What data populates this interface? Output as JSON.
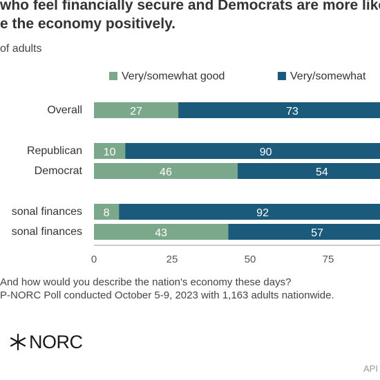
{
  "title": {
    "line1": "who feel financially secure and Democrats are more likely",
    "line2": "e the economy positively."
  },
  "subtitle": "of adults",
  "footnote": {
    "line1": "And how would you describe the nation's economy these days?",
    "line2": "P-NORC Poll conducted October 5-9, 2023 with 1,163 adults nationwide."
  },
  "logo": {
    "text": "NORC",
    "icon": "norc-star-icon"
  },
  "source_tag": "API",
  "colors": {
    "good": "#7ba88a",
    "poor": "#1b5a7a",
    "text": "#333333",
    "axis": "#999999"
  },
  "chart_data": {
    "type": "bar",
    "orientation": "horizontal",
    "stacked": true,
    "categories": [
      "Overall",
      "Republican",
      "Democrat",
      "sonal finances",
      "sonal finances"
    ],
    "series": [
      {
        "name": "Very/somewhat good",
        "values": [
          27,
          10,
          46,
          8,
          43
        ],
        "color": "#7ba88a"
      },
      {
        "name": "Very/somewhat",
        "values": [
          73,
          90,
          54,
          92,
          57
        ],
        "color": "#1b5a7a"
      }
    ],
    "xlim": [
      0,
      100
    ],
    "xticks": [
      0,
      25,
      50,
      75
    ],
    "grid": false,
    "legend": "top"
  }
}
